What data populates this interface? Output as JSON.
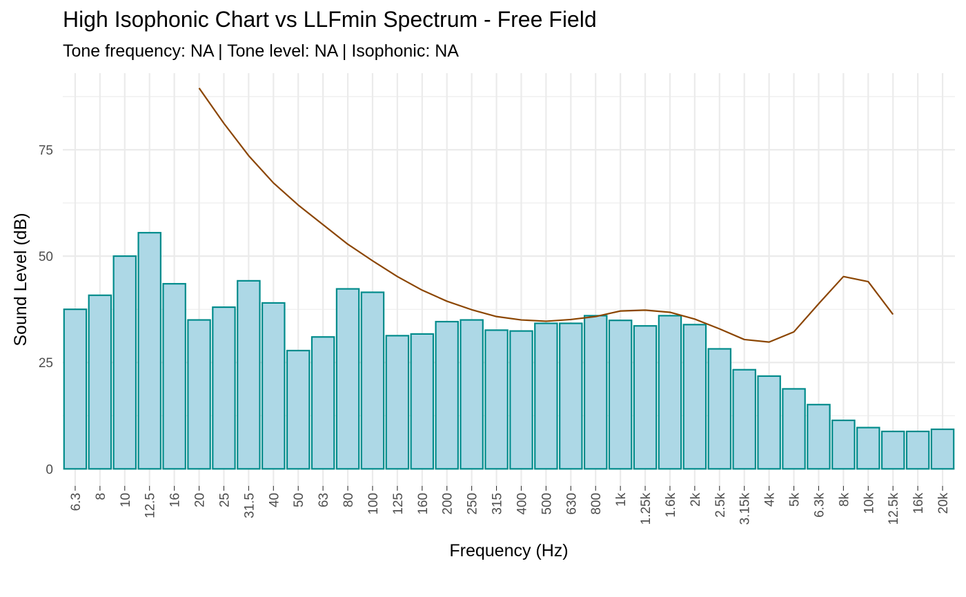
{
  "chart_data": {
    "type": "bar",
    "title": "High Isophonic Chart vs LLFmin Spectrum - Free Field",
    "subtitle": "Tone frequency: NA | Tone level: NA | Isophonic: NA",
    "xlabel": "Frequency (Hz)",
    "ylabel": "Sound Level (dB)",
    "ylim": [
      -4,
      93
    ],
    "yticks": [
      0,
      25,
      50,
      75
    ],
    "grid": true,
    "categories": [
      "6.3",
      "8",
      "10",
      "12.5",
      "16",
      "20",
      "25",
      "31.5",
      "40",
      "50",
      "63",
      "80",
      "100",
      "125",
      "160",
      "200",
      "250",
      "315",
      "400",
      "500",
      "630",
      "800",
      "1k",
      "1.25k",
      "1.6k",
      "2k",
      "2.5k",
      "3.15k",
      "4k",
      "5k",
      "6.3k",
      "8k",
      "10k",
      "12.5k",
      "16k",
      "20k"
    ],
    "series": [
      {
        "type": "bar",
        "values": [
          37.5,
          40.8,
          50.0,
          55.5,
          43.5,
          35.0,
          38.0,
          44.2,
          39.0,
          27.8,
          31.0,
          42.3,
          41.5,
          31.3,
          31.7,
          34.6,
          35.0,
          32.6,
          32.4,
          34.2,
          34.2,
          36.0,
          34.9,
          33.6,
          36.0,
          33.9,
          28.2,
          23.3,
          21.8,
          18.8,
          15.1,
          11.4,
          9.7,
          8.8,
          8.8,
          9.3
        ],
        "fill": "#add8e6",
        "stroke": "#008b8b"
      },
      {
        "type": "line",
        "values": [
          null,
          null,
          null,
          null,
          null,
          89.5,
          81.2,
          73.6,
          67.2,
          62.0,
          57.4,
          52.8,
          48.9,
          45.2,
          42.0,
          39.4,
          37.4,
          35.8,
          35.0,
          34.7,
          35.1,
          35.8,
          37.1,
          37.3,
          36.8,
          35.2,
          32.9,
          30.4,
          29.8,
          32.2,
          38.8,
          45.2,
          44.0,
          36.3,
          null,
          null
        ],
        "stroke": "#8b4500"
      }
    ]
  }
}
